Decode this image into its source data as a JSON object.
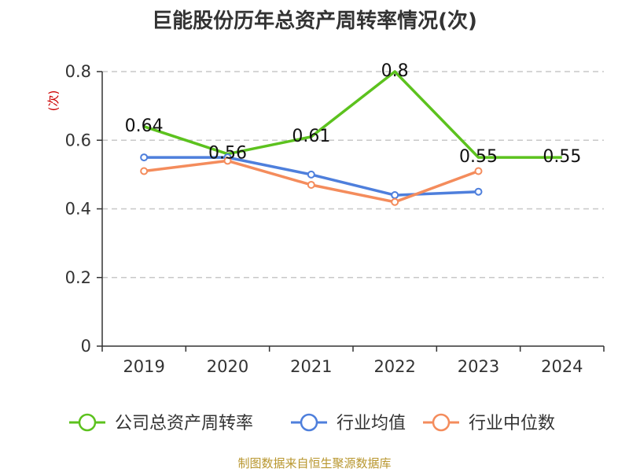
{
  "chart_data": {
    "type": "line",
    "title": "巨能股份历年总资产周转率情况(次)",
    "ylabel": "(次)",
    "xlabel": "",
    "categories": [
      "2019",
      "2020",
      "2021",
      "2022",
      "2023",
      "2024"
    ],
    "ylim": [
      0,
      0.8
    ],
    "yticks": [
      "0",
      "0.2",
      "0.4",
      "0.6",
      "0.8"
    ],
    "grid": true,
    "legend_position": "bottom",
    "series": [
      {
        "name": "公司总资产周转率",
        "color": "#5cc21e",
        "values": [
          0.64,
          0.56,
          0.61,
          0.8,
          0.55,
          0.55
        ],
        "labels": [
          "0.64",
          "0.56",
          "0.61",
          "0.8",
          "0.55",
          "0.55"
        ],
        "markers": false
      },
      {
        "name": "行业均值",
        "color": "#4e7fdc",
        "values": [
          0.55,
          0.55,
          0.5,
          0.44,
          0.45,
          null
        ],
        "markers": true
      },
      {
        "name": "行业中位数",
        "color": "#f48c5c",
        "values": [
          0.51,
          0.54,
          0.47,
          0.42,
          0.51,
          null
        ],
        "markers": true
      }
    ]
  },
  "source": "制图数据来自恒生聚源数据库"
}
